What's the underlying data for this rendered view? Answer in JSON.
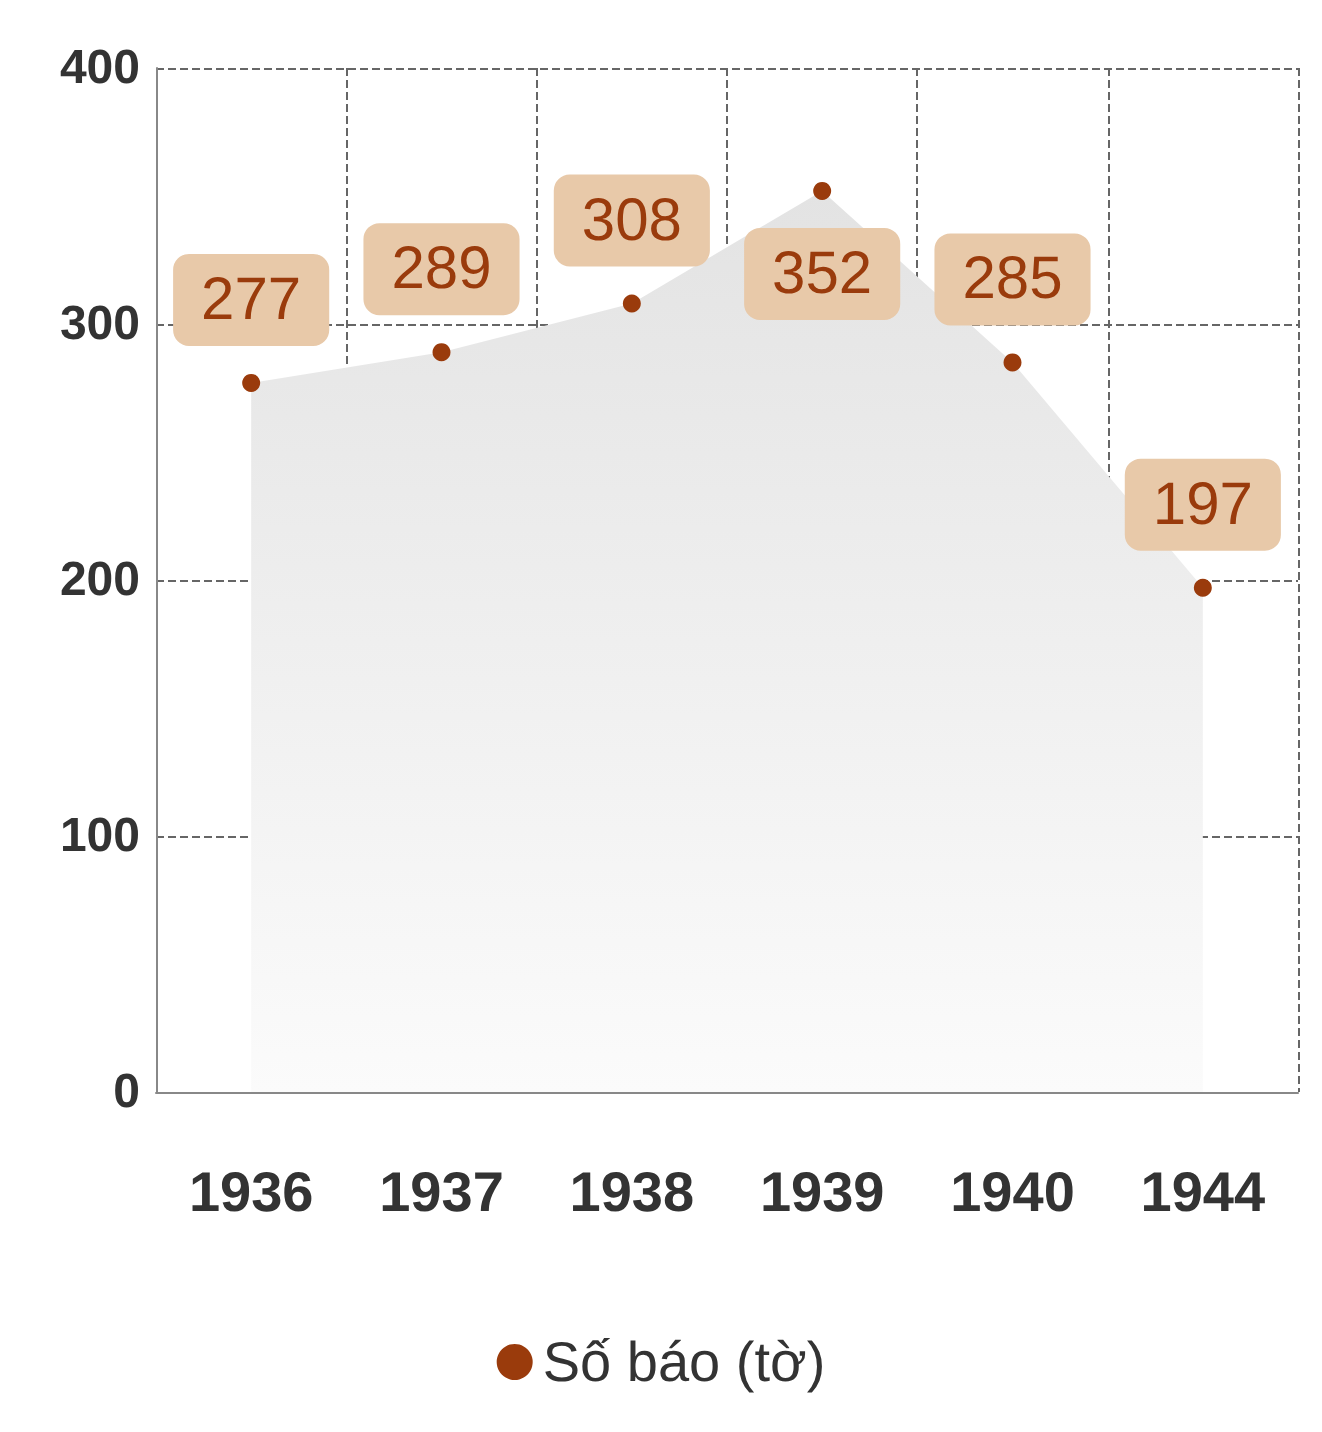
{
  "chart_data": {
    "type": "area",
    "categories": [
      "1936",
      "1937",
      "1938",
      "1939",
      "1940",
      "1944"
    ],
    "series": [
      {
        "name": "Số báo (tờ)",
        "color": "#9a3b0c",
        "values": [
          277,
          289,
          308,
          352,
          285,
          197
        ]
      }
    ],
    "ylim": [
      0,
      400
    ],
    "yticks": [
      0,
      100,
      200,
      300,
      400
    ],
    "grid": true,
    "legend": "bottom",
    "marker": "circle",
    "data_labels": true
  }
}
